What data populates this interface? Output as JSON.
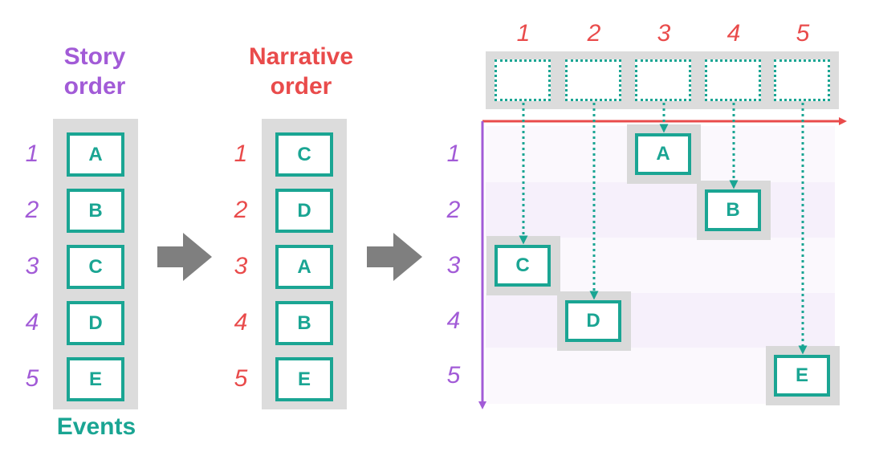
{
  "story_column": {
    "title": "Story order",
    "footer": "Events",
    "numbers": [
      "1",
      "2",
      "3",
      "4",
      "5"
    ],
    "events": [
      "A",
      "B",
      "C",
      "D",
      "E"
    ]
  },
  "narrative_column": {
    "title": "Narrative order",
    "numbers": [
      "1",
      "2",
      "3",
      "4",
      "5"
    ],
    "events": [
      "C",
      "D",
      "A",
      "B",
      "E"
    ]
  },
  "matrix": {
    "column_numbers": [
      "1",
      "2",
      "3",
      "4",
      "5"
    ],
    "row_numbers": [
      "1",
      "2",
      "3",
      "4",
      "5"
    ],
    "placements": [
      {
        "event": "C",
        "narrative_position": 1,
        "story_position": 3
      },
      {
        "event": "D",
        "narrative_position": 2,
        "story_position": 4
      },
      {
        "event": "A",
        "narrative_position": 3,
        "story_position": 1
      },
      {
        "event": "B",
        "narrative_position": 4,
        "story_position": 2
      },
      {
        "event": "E",
        "narrative_position": 5,
        "story_position": 5
      }
    ]
  },
  "colors": {
    "story": "#a25bd7",
    "narrative": "#e94b4b",
    "event": "#1aa593",
    "panel": "#dcdcdc",
    "arrow": "#7f7f7f"
  }
}
